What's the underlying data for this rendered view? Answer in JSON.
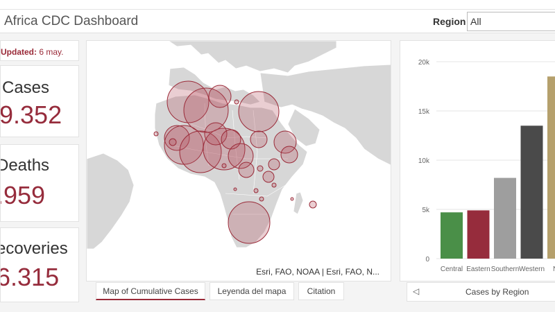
{
  "header": {
    "title": "Africa CDC Dashboard",
    "region_label": "Region",
    "region_value": "All"
  },
  "updated": {
    "label": "Updated:",
    "value": "6 may."
  },
  "cards": {
    "cases": {
      "label": "Cases",
      "value": "9.352"
    },
    "deaths": {
      "label": "Deaths",
      "value": ".959"
    },
    "recoveries": {
      "label": "ecoveries",
      "value": "6.315"
    }
  },
  "map": {
    "attribution": "Esri, FAO, NOAA | Esri, FAO, N...",
    "bubble_color": "#b5505f"
  },
  "tabs": [
    {
      "label": "Map of Cumulative Cases",
      "active": true
    },
    {
      "label": "Leyenda del mapa",
      "active": false
    },
    {
      "label": "Citation",
      "active": false
    }
  ],
  "chart_footer": {
    "label": "Cases by Region",
    "arrow": "◁"
  },
  "chart_data": {
    "type": "bar",
    "categories": [
      "Central",
      "Eastern",
      "Southern",
      "Western",
      "Nor"
    ],
    "values": [
      4700,
      4900,
      8200,
      13500,
      18500
    ],
    "colors": [
      "#4a8f48",
      "#962c3c",
      "#9e9e9e",
      "#4a4a4a",
      "#b5a06c"
    ],
    "yticks": [
      "0",
      "5k",
      "10k",
      "15k",
      "20k"
    ],
    "ylim": [
      0,
      20000
    ],
    "grid": true
  }
}
